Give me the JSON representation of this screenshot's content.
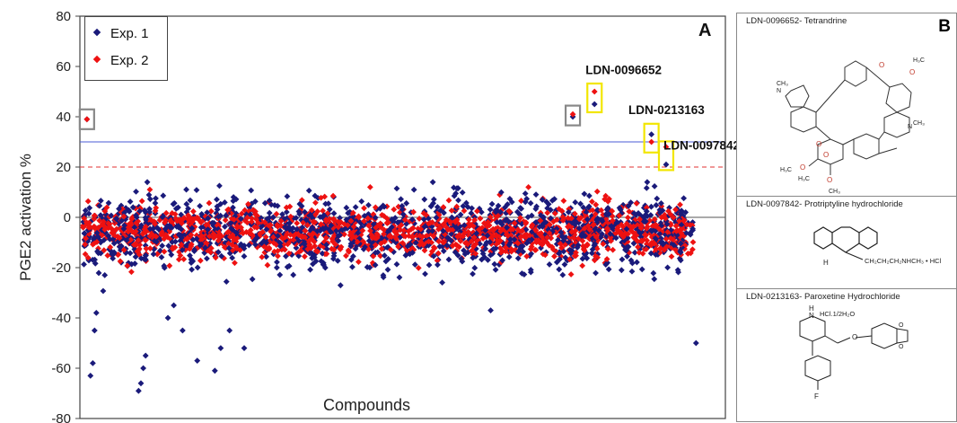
{
  "chart_data": {
    "type": "scatter",
    "panel_label": "A",
    "ylabel": "PGE2 activation %",
    "xlabel": "Compounds",
    "ylim": [
      -80,
      80
    ],
    "yticks": [
      80,
      60,
      40,
      20,
      0,
      -20,
      -40,
      -60,
      -80
    ],
    "xticks": [],
    "grid": false,
    "legend_position": "top-left",
    "series": [
      {
        "name": "Exp. 1",
        "color": "#1a1a7a"
      },
      {
        "name": "Exp. 2",
        "color": "#ee1111"
      }
    ],
    "reference_lines": [
      {
        "y": 30,
        "color": "#4a5bd6",
        "style": "solid"
      },
      {
        "y": 20,
        "color": "#e03030",
        "style": "dashed"
      },
      {
        "y": 0,
        "color": "#555555",
        "style": "solid"
      }
    ],
    "bulk_spread": {
      "n_compounds": 1400,
      "exp1_mean": -6,
      "exp1_sd": 7,
      "exp2_mean": -6,
      "exp2_sd": 5
    },
    "highlighted_points": [
      {
        "series": "Exp. 1",
        "x": 12,
        "y": 39
      },
      {
        "series": "Exp. 2",
        "x": 12,
        "y": 39
      },
      {
        "series": "Exp. 1",
        "x": 840,
        "y": 40
      },
      {
        "series": "Exp. 2",
        "x": 840,
        "y": 41
      },
      {
        "series": "Exp. 2",
        "x": 877,
        "y": 50
      },
      {
        "series": "Exp. 1",
        "x": 877,
        "y": 45
      },
      {
        "series": "Exp. 1",
        "x": 974,
        "y": 33
      },
      {
        "series": "Exp. 2",
        "x": 974,
        "y": 30
      },
      {
        "series": "Exp. 2",
        "x": 999,
        "y": 28
      },
      {
        "series": "Exp. 1",
        "x": 999,
        "y": 21
      }
    ],
    "outliers_low": [
      {
        "x": 18,
        "y": -63
      },
      {
        "x": 22,
        "y": -58
      },
      {
        "x": 25,
        "y": -45
      },
      {
        "x": 28,
        "y": -38
      },
      {
        "x": 100,
        "y": -69
      },
      {
        "x": 104,
        "y": -66
      },
      {
        "x": 108,
        "y": -60
      },
      {
        "x": 112,
        "y": -55
      },
      {
        "x": 150,
        "y": -40
      },
      {
        "x": 160,
        "y": -35
      },
      {
        "x": 175,
        "y": -45
      },
      {
        "x": 200,
        "y": -57
      },
      {
        "x": 230,
        "y": -61
      },
      {
        "x": 240,
        "y": -52
      },
      {
        "x": 255,
        "y": -45
      },
      {
        "x": 280,
        "y": -52
      },
      {
        "x": 1050,
        "y": -50
      },
      {
        "x": 700,
        "y": -37
      }
    ],
    "annotations": [
      {
        "text": "LDN-0096652",
        "x": 877,
        "y": 57
      },
      {
        "text": "LDN-0213163",
        "x": 950,
        "y": 41
      },
      {
        "text": "LDN-0097842",
        "x": 1010,
        "y": 27
      }
    ],
    "boxes": [
      {
        "color": "gray",
        "x": 12,
        "y": 39
      },
      {
        "color": "gray",
        "x": 840,
        "y": 40.5
      },
      {
        "color": "yellow",
        "x": 877,
        "y": 47.5
      },
      {
        "color": "yellow",
        "x": 974,
        "y": 31.5
      },
      {
        "color": "yellow",
        "x": 999,
        "y": 24.5
      }
    ]
  },
  "panel_b": {
    "label": "B",
    "cells": [
      {
        "title": "LDN-0096652- Tetrandrine",
        "structure": "tetrandrine"
      },
      {
        "title": "LDN-0097842- Protriptyline hydrochloride",
        "structure": "protriptyline",
        "formula": "CH₂CH₂CH₂NHCH₃ • HCl",
        "h_label": "H"
      },
      {
        "title": "LDN-0213163- Paroxetine Hydrochloride",
        "structure": "paroxetine",
        "formula": "HCl.1/2H₂O",
        "nh_label": "H\nN",
        "f_label": "F"
      }
    ]
  }
}
